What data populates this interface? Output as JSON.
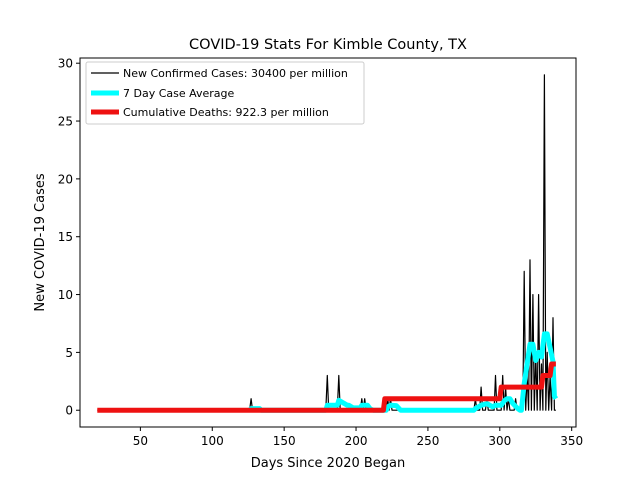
{
  "chart_data": {
    "type": "line",
    "title": "COVID-19 Stats For Kimble County, TX",
    "xlabel": "Days Since 2020 Began",
    "ylabel": "New COVID-19 Cases",
    "xlim": [
      8,
      353
    ],
    "ylim": [
      -1.45,
      30.45
    ],
    "xticks": [
      50,
      100,
      150,
      200,
      250,
      300,
      350
    ],
    "yticks": [
      0,
      5,
      10,
      15,
      20,
      25,
      30
    ],
    "grid": false,
    "legend_position": "top-left",
    "series": [
      {
        "name": "New Confirmed Cases: 30400 per million",
        "color": "#000000",
        "points": [
          [
            20,
            0
          ],
          [
            126,
            0
          ],
          [
            127,
            1
          ],
          [
            128,
            0
          ],
          [
            179,
            0
          ],
          [
            180,
            3
          ],
          [
            181,
            0
          ],
          [
            187,
            0
          ],
          [
            188,
            3
          ],
          [
            189,
            0
          ],
          [
            203,
            0
          ],
          [
            204,
            1
          ],
          [
            205,
            0
          ],
          [
            206,
            1
          ],
          [
            207,
            0
          ],
          [
            221,
            0
          ],
          [
            222,
            1
          ],
          [
            223,
            0
          ],
          [
            224,
            1
          ],
          [
            225,
            0
          ],
          [
            282,
            0
          ],
          [
            283,
            1
          ],
          [
            284,
            0
          ],
          [
            286,
            0
          ],
          [
            287,
            2
          ],
          [
            288,
            0
          ],
          [
            290,
            0
          ],
          [
            291,
            1
          ],
          [
            292,
            0
          ],
          [
            296,
            0
          ],
          [
            297,
            3
          ],
          [
            298,
            0
          ],
          [
            301,
            0
          ],
          [
            302,
            3
          ],
          [
            303,
            0
          ],
          [
            304,
            2
          ],
          [
            305,
            0
          ],
          [
            306,
            1
          ],
          [
            307,
            0
          ],
          [
            310,
            0
          ],
          [
            311,
            1
          ],
          [
            312,
            0
          ],
          [
            314,
            0
          ],
          [
            315,
            1
          ],
          [
            316,
            0
          ],
          [
            317,
            12
          ],
          [
            318,
            0
          ],
          [
            319,
            3
          ],
          [
            320,
            0
          ],
          [
            321,
            13
          ],
          [
            322,
            0
          ],
          [
            323,
            10
          ],
          [
            324,
            0
          ],
          [
            325,
            5
          ],
          [
            326,
            0
          ],
          [
            327,
            10
          ],
          [
            328,
            0
          ],
          [
            329,
            4
          ],
          [
            330,
            0
          ],
          [
            331,
            29
          ],
          [
            332,
            0
          ],
          [
            333,
            5
          ],
          [
            334,
            0
          ],
          [
            335,
            3
          ],
          [
            336,
            0
          ],
          [
            337,
            8
          ],
          [
            338,
            0
          ],
          [
            339,
            0
          ]
        ]
      },
      {
        "name": "7 Day Case Average",
        "color": "#00ffff",
        "points": [
          [
            126,
            0
          ],
          [
            127,
            0.14
          ],
          [
            133,
            0.14
          ],
          [
            134,
            0
          ],
          [
            179,
            0
          ],
          [
            180,
            0.43
          ],
          [
            186,
            0.43
          ],
          [
            187,
            0.43
          ],
          [
            188,
            0.86
          ],
          [
            194,
            0.43
          ],
          [
            195,
            0.43
          ],
          [
            198,
            0.2
          ],
          [
            203,
            0.2
          ],
          [
            204,
            0.43
          ],
          [
            208,
            0.43
          ],
          [
            210,
            0.1
          ],
          [
            212,
            0
          ],
          [
            221,
            0
          ],
          [
            222,
            0.3
          ],
          [
            224,
            0.43
          ],
          [
            228,
            0.4
          ],
          [
            231,
            0
          ],
          [
            282,
            0
          ],
          [
            283,
            0.14
          ],
          [
            287,
            0.43
          ],
          [
            291,
            0.57
          ],
          [
            295,
            0.3
          ],
          [
            297,
            0.43
          ],
          [
            301,
            0.43
          ],
          [
            303,
            0.8
          ],
          [
            305,
            1
          ],
          [
            307,
            1
          ],
          [
            309,
            0.6
          ],
          [
            312,
            0.2
          ],
          [
            314,
            0
          ],
          [
            315,
            0
          ],
          [
            317,
            2.3
          ],
          [
            319,
            4
          ],
          [
            321,
            5.7
          ],
          [
            323,
            5.7
          ],
          [
            325,
            4.3
          ],
          [
            327,
            5
          ],
          [
            329,
            4.6
          ],
          [
            331,
            6.6
          ],
          [
            333,
            6.6
          ],
          [
            335,
            5.4
          ],
          [
            337,
            4.2
          ],
          [
            338,
            1.2
          ],
          [
            339,
            1
          ]
        ]
      },
      {
        "name": "Cumulative Deaths: 922.3 per million",
        "color": "#ee1111",
        "points": [
          [
            20,
            0
          ],
          [
            219,
            0
          ],
          [
            220,
            1
          ],
          [
            300,
            1
          ],
          [
            301,
            2
          ],
          [
            329,
            2
          ],
          [
            330,
            3
          ],
          [
            335,
            3
          ],
          [
            336,
            4
          ],
          [
            339,
            4
          ]
        ]
      }
    ]
  }
}
